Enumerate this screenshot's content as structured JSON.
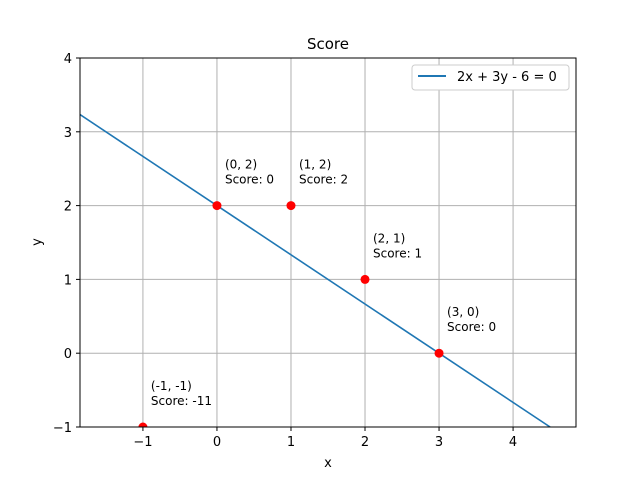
{
  "chart_data": {
    "type": "scatter",
    "title": "Score",
    "xlabel": "x",
    "ylabel": "y",
    "xlim": [
      -1.85,
      4.85
    ],
    "ylim": [
      -1,
      4
    ],
    "xticks": [
      -1,
      0,
      1,
      2,
      3,
      4
    ],
    "yticks": [
      -1,
      0,
      1,
      2,
      3,
      4
    ],
    "xtick_labels": [
      "−1",
      "0",
      "1",
      "2",
      "3",
      "4"
    ],
    "ytick_labels": [
      "−1",
      "0",
      "1",
      "2",
      "3",
      "4"
    ],
    "grid": true,
    "legend": {
      "placement": "top-right",
      "entries": [
        "2x + 3y - 6 = 0"
      ]
    },
    "line": {
      "name": "2x + 3y - 6 = 0",
      "color": "#1f77b4",
      "x": [
        -1.85,
        4.5
      ],
      "y": [
        3.2333,
        -1.0
      ]
    },
    "points": [
      {
        "x": 0,
        "y": 2,
        "label": "(0, 2)",
        "score": "Score: 0"
      },
      {
        "x": 1,
        "y": 2,
        "label": "(1, 2)",
        "score": "Score: 2"
      },
      {
        "x": 2,
        "y": 1,
        "label": "(2, 1)",
        "score": "Score: 1"
      },
      {
        "x": 3,
        "y": 0,
        "label": "(3, 0)",
        "score": "Score: 0"
      },
      {
        "x": -1,
        "y": -1,
        "label": "(-1, -1)",
        "score": "Score: -11"
      }
    ],
    "point_color": "#ff0000"
  }
}
